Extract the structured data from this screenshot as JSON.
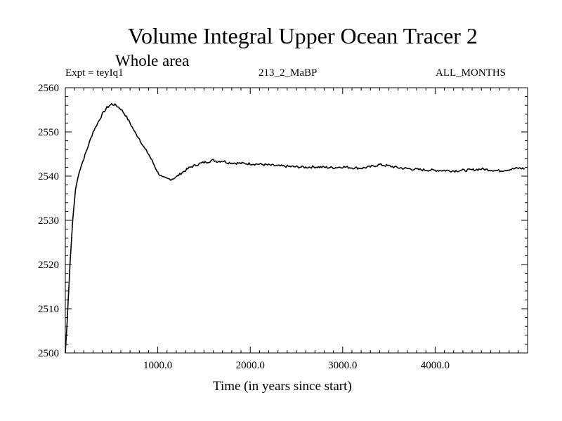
{
  "chart_data": {
    "type": "line",
    "title": "Volume Integral Upper Ocean Tracer 2",
    "subtitle": "Whole area",
    "annotations": {
      "expt": "Expt = teyIq1",
      "run": "213_2_MaBP",
      "period": "ALL_MONTHS"
    },
    "xlabel": "Time (in years since start)",
    "ylabel": "",
    "xlim": [
      0,
      5000
    ],
    "ylim": [
      2500,
      2560
    ],
    "xticks": [
      1000,
      2000,
      3000,
      4000
    ],
    "xtick_labels": [
      "1000.0",
      "2000.0",
      "3000.0",
      "4000.0"
    ],
    "yticks": [
      2500,
      2510,
      2520,
      2530,
      2540,
      2550,
      2560
    ],
    "ytick_labels": [
      "2500",
      "2510",
      "2520",
      "2530",
      "2540",
      "2550",
      "2560"
    ],
    "grid": false,
    "series": [
      {
        "x": [
          0,
          20,
          50,
          80,
          110,
          150,
          200,
          250,
          300,
          350,
          400,
          450,
          500,
          550,
          600,
          650,
          700,
          750,
          800,
          850,
          900,
          950,
          1000,
          1050,
          1100,
          1150,
          1200,
          1250,
          1300,
          1350,
          1400,
          1450,
          1500,
          1550,
          1600,
          1650,
          1700,
          1750,
          1800,
          1900,
          2000,
          2100,
          2200,
          2300,
          2400,
          2500,
          2600,
          2700,
          2800,
          2900,
          3000,
          3100,
          3200,
          3300,
          3400,
          3500,
          3600,
          3700,
          3800,
          3900,
          4000,
          4100,
          4200,
          4300,
          4400,
          4500,
          4600,
          4700,
          4800,
          4900,
          4970
        ],
        "y": [
          2500,
          2507,
          2520,
          2530,
          2537,
          2541,
          2544,
          2547,
          2550,
          2552,
          2554,
          2555.5,
          2556.3,
          2556,
          2555.2,
          2553.8,
          2552,
          2550,
          2548.5,
          2546.5,
          2545,
          2543,
          2540.8,
          2539.7,
          2539.4,
          2539.3,
          2539.8,
          2540.6,
          2541.3,
          2542,
          2542.4,
          2542.8,
          2543.1,
          2543.3,
          2543.6,
          2543.3,
          2543.5,
          2543.1,
          2543,
          2542.9,
          2542.8,
          2542.7,
          2542.5,
          2542.3,
          2542.2,
          2542.1,
          2542,
          2542.1,
          2542,
          2541.9,
          2542.1,
          2541.9,
          2541.8,
          2542.1,
          2542.6,
          2542.3,
          2541.9,
          2541.7,
          2541.5,
          2541.4,
          2541.3,
          2541.3,
          2541.2,
          2541.3,
          2541.4,
          2541.6,
          2541.4,
          2541.2,
          2541.5,
          2541.8,
          2541.7
        ]
      }
    ]
  }
}
